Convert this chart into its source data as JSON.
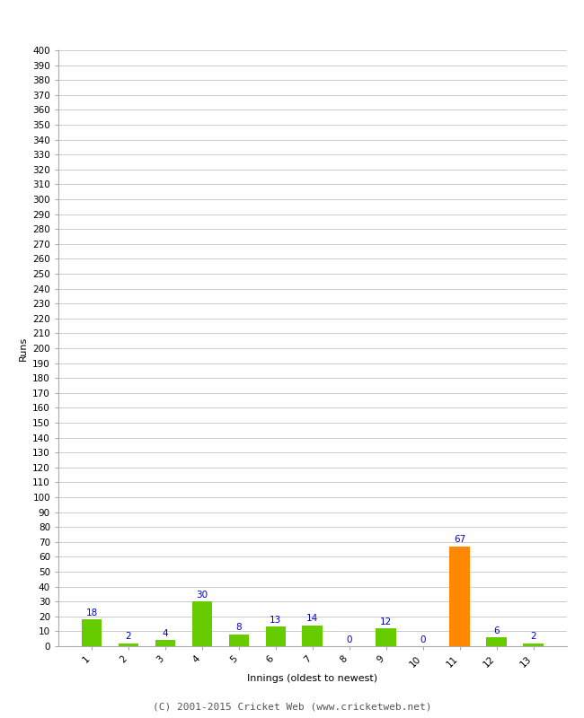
{
  "xlabel": "Innings (oldest to newest)",
  "ylabel": "Runs",
  "categories": [
    1,
    2,
    3,
    4,
    5,
    6,
    7,
    8,
    9,
    10,
    11,
    12,
    13
  ],
  "values": [
    18,
    2,
    4,
    30,
    8,
    13,
    14,
    0,
    12,
    0,
    67,
    6,
    2
  ],
  "bar_colors": [
    "#66cc00",
    "#66cc00",
    "#66cc00",
    "#66cc00",
    "#66cc00",
    "#66cc00",
    "#66cc00",
    "#66cc00",
    "#66cc00",
    "#66cc00",
    "#ff8800",
    "#66cc00",
    "#66cc00"
  ],
  "ylim": [
    0,
    400
  ],
  "label_color": "#0000cc",
  "grid_color": "#cccccc",
  "background_color": "#ffffff",
  "footer": "(C) 2001-2015 Cricket Web (www.cricketweb.net)",
  "label_fontsize": 7.5,
  "axis_tick_fontsize": 7.5,
  "axis_label_fontsize": 8,
  "footer_fontsize": 8,
  "bar_width": 0.55
}
